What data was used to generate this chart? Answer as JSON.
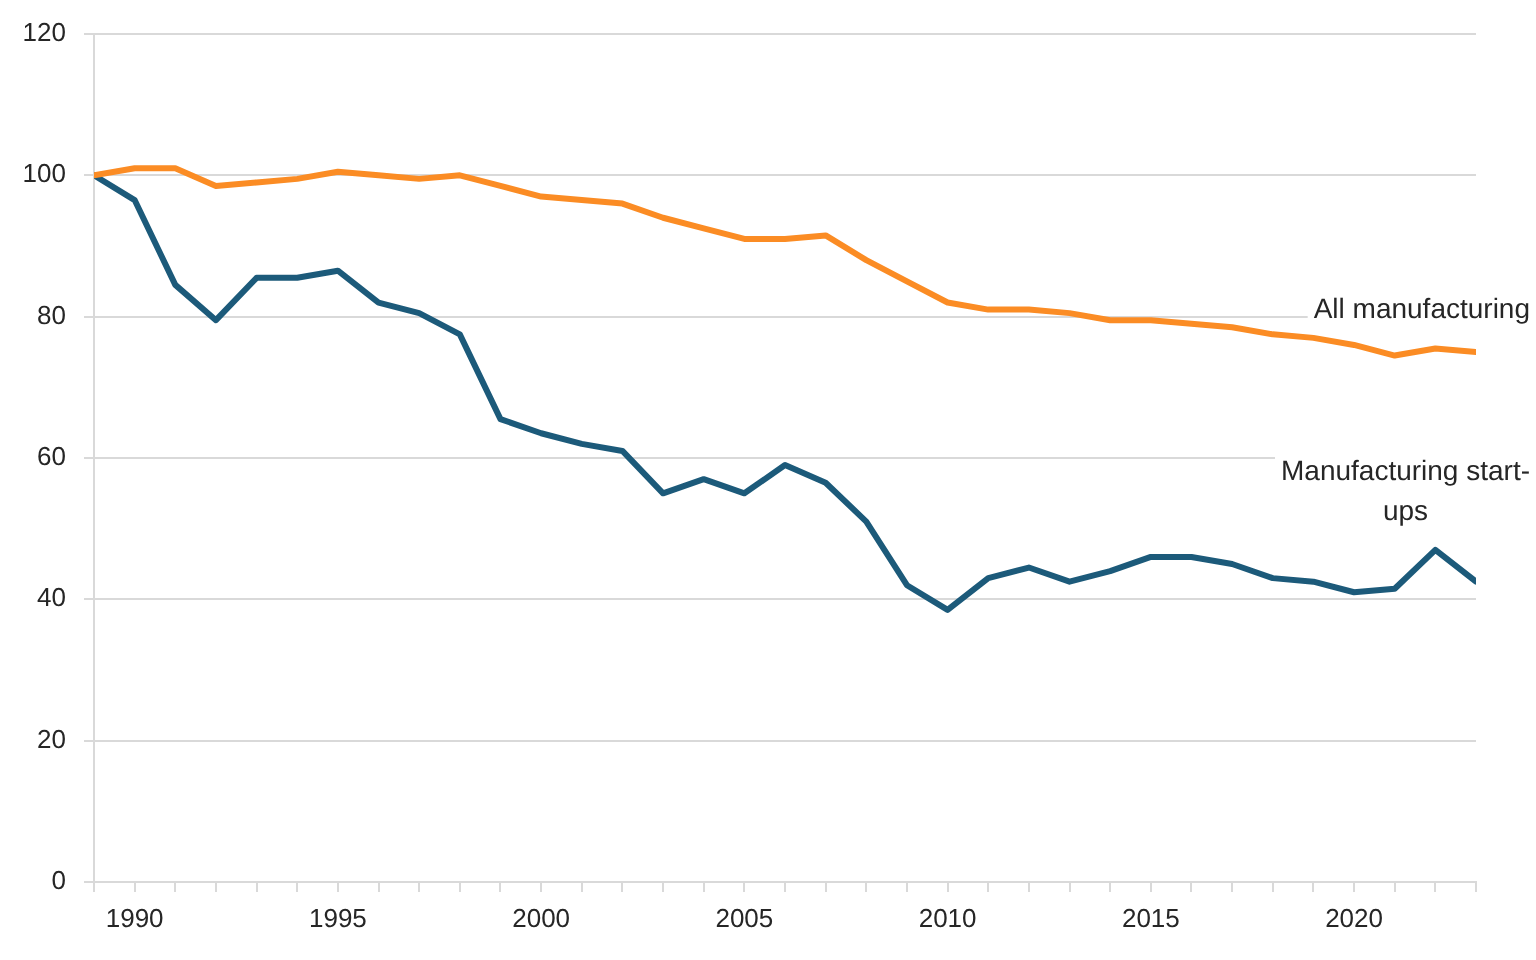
{
  "chart_data": {
    "type": "line",
    "x": [
      1989,
      1990,
      1991,
      1992,
      1993,
      1994,
      1995,
      1996,
      1997,
      1998,
      1999,
      2000,
      2001,
      2002,
      2003,
      2004,
      2005,
      2006,
      2007,
      2008,
      2009,
      2010,
      2011,
      2012,
      2013,
      2014,
      2015,
      2016,
      2017,
      2018,
      2019,
      2020,
      2021,
      2022,
      2023
    ],
    "series": [
      {
        "name": "All manufacturing",
        "color": "#fb8c24",
        "values": [
          100,
          101,
          101,
          98.5,
          99,
          99.5,
          100.5,
          100,
          99.5,
          100,
          98.5,
          97,
          96.5,
          96,
          94,
          92.5,
          91,
          91,
          91.5,
          88,
          85,
          82,
          81,
          81,
          80.5,
          79.5,
          79.5,
          79,
          78.5,
          77.5,
          77,
          76,
          74.5,
          75.5,
          75
        ]
      },
      {
        "name": "Manufacturing start-ups",
        "color": "#1c5a7a",
        "values": [
          100,
          96.5,
          84.5,
          79.5,
          85.5,
          85.5,
          86.5,
          82,
          80.5,
          77.5,
          65.5,
          63.5,
          62,
          61,
          55,
          57,
          55,
          59,
          56.5,
          51,
          42,
          38.5,
          43,
          44.5,
          42.5,
          44,
          46,
          46,
          45,
          43,
          42.5,
          41,
          41.5,
          47,
          42.5
        ]
      }
    ],
    "xlim": [
      1989,
      2023
    ],
    "xticks": [
      {
        "value": 1989,
        "label": null
      },
      1990,
      {
        "value": 1991,
        "label": null
      },
      {
        "value": 1992,
        "label": null
      },
      {
        "value": 1993,
        "label": null
      },
      {
        "value": 1994,
        "label": null
      },
      1995,
      {
        "value": 1996,
        "label": null
      },
      {
        "value": 1997,
        "label": null
      },
      {
        "value": 1998,
        "label": null
      },
      {
        "value": 1999,
        "label": null
      },
      2000,
      {
        "value": 2001,
        "label": null
      },
      {
        "value": 2002,
        "label": null
      },
      {
        "value": 2003,
        "label": null
      },
      {
        "value": 2004,
        "label": null
      },
      2005,
      {
        "value": 2006,
        "label": null
      },
      {
        "value": 2007,
        "label": null
      },
      {
        "value": 2008,
        "label": null
      },
      {
        "value": 2009,
        "label": null
      },
      2010,
      {
        "value": 2011,
        "label": null
      },
      {
        "value": 2012,
        "label": null
      },
      {
        "value": 2013,
        "label": null
      },
      {
        "value": 2014,
        "label": null
      },
      2015,
      {
        "value": 2016,
        "label": null
      },
      {
        "value": 2017,
        "label": null
      },
      {
        "value": 2018,
        "label": null
      },
      {
        "value": 2019,
        "label": null
      },
      2020,
      {
        "value": 2021,
        "label": null
      },
      {
        "value": 2022,
        "label": null
      },
      {
        "value": 2023,
        "label": null
      }
    ],
    "ylim": [
      0,
      120
    ],
    "yticks": [
      0,
      20,
      40,
      60,
      80,
      100,
      120
    ],
    "grid": "y",
    "legend": false,
    "marker": "none",
    "line_style": "solid"
  }
}
